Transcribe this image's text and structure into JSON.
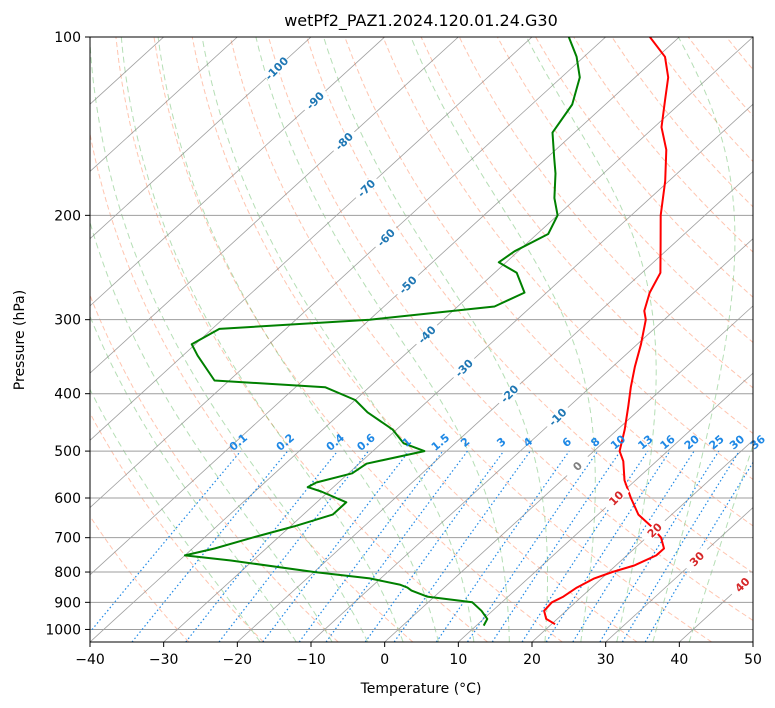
{
  "chart_data": {
    "type": "line",
    "subtype": "skew-t log-p diagram",
    "title": "wetPf2_PAZ1.2024.120.01.24.G30",
    "xlabel": "Temperature (°C)",
    "ylabel": "Pressure (hPa)",
    "xlim": [
      -40,
      50
    ],
    "ylim": [
      1050,
      100
    ],
    "y_scale": "log",
    "x_ticks": [
      "−40",
      "−30",
      "−20",
      "−10",
      "0",
      "10",
      "20",
      "30",
      "40",
      "50"
    ],
    "y_ticks": [
      "100",
      "200",
      "300",
      "400",
      "500",
      "600",
      "700",
      "800",
      "900",
      "1000"
    ],
    "grid": true,
    "series": [
      {
        "name": "",
        "color": "#ff0000",
        "points": [
          [
            20.5,
            980
          ],
          [
            18.5,
            960
          ],
          [
            17.0,
            930
          ],
          [
            16.8,
            900
          ],
          [
            17.5,
            880
          ],
          [
            18.0,
            850
          ],
          [
            19.0,
            820
          ],
          [
            20.5,
            800
          ],
          [
            22.5,
            780
          ],
          [
            24.0,
            750
          ],
          [
            24.0,
            730
          ],
          [
            22.0,
            700
          ],
          [
            19.0,
            670
          ],
          [
            15.5,
            640
          ],
          [
            12.0,
            600
          ],
          [
            8.5,
            560
          ],
          [
            5.5,
            520
          ],
          [
            3.5,
            500
          ],
          [
            1.0,
            460
          ],
          [
            -2.0,
            420
          ],
          [
            -4.5,
            390
          ],
          [
            -7.0,
            360
          ],
          [
            -9.5,
            330
          ],
          [
            -12.5,
            300
          ],
          [
            -14.0,
            290
          ],
          [
            -16.0,
            270
          ],
          [
            -17.5,
            250
          ],
          [
            -21.5,
            225
          ],
          [
            -26.0,
            200
          ],
          [
            -30.5,
            175
          ],
          [
            -35.0,
            155
          ],
          [
            -39.0,
            142
          ],
          [
            -42.5,
            128
          ],
          [
            -45.5,
            117
          ],
          [
            -49.0,
            108
          ],
          [
            -54.0,
            100
          ]
        ]
      },
      {
        "name": "",
        "color": "#008000",
        "points": [
          [
            11.0,
            985
          ],
          [
            10.5,
            960
          ],
          [
            8.5,
            930
          ],
          [
            6.0,
            900
          ],
          [
            -1.0,
            880
          ],
          [
            -4.0,
            860
          ],
          [
            -5.0,
            850
          ],
          [
            -6.5,
            840
          ],
          [
            -11.5,
            820
          ],
          [
            -20.0,
            800
          ],
          [
            -33.0,
            765
          ],
          [
            -40.0,
            750
          ],
          [
            -37.0,
            730
          ],
          [
            -33.5,
            700
          ],
          [
            -29.5,
            670
          ],
          [
            -26.0,
            640
          ],
          [
            -26.0,
            610
          ],
          [
            -31.0,
            585
          ],
          [
            -33.5,
            575
          ],
          [
            -33.0,
            565
          ],
          [
            -29.5,
            545
          ],
          [
            -29.0,
            525
          ],
          [
            -23.0,
            500
          ],
          [
            -27.0,
            485
          ],
          [
            -30.5,
            460
          ],
          [
            -36.5,
            430
          ],
          [
            -40.0,
            410
          ],
          [
            -46.0,
            390
          ],
          [
            -62.0,
            380
          ],
          [
            -68.0,
            345
          ],
          [
            -70.5,
            330
          ],
          [
            -69.0,
            311
          ],
          [
            -50.0,
            300
          ],
          [
            -35.0,
            285
          ],
          [
            -33.0,
            270
          ],
          [
            -37.0,
            250
          ],
          [
            -41.0,
            240
          ],
          [
            -40.5,
            230
          ],
          [
            -38.5,
            215
          ],
          [
            -40.0,
            200
          ],
          [
            -43.0,
            187
          ],
          [
            -46.5,
            170
          ],
          [
            -49.0,
            160
          ],
          [
            -53.0,
            145
          ],
          [
            -54.5,
            130
          ],
          [
            -57.5,
            117
          ],
          [
            -61.0,
            108
          ],
          [
            -65.0,
            100
          ]
        ]
      }
    ],
    "annotations": {
      "isotherm_labels": [
        "-100",
        "-90",
        "-80",
        "-70",
        "-60",
        "-50",
        "-40",
        "-30",
        "-20",
        "-10",
        "0",
        "10",
        "20",
        "30",
        "40"
      ],
      "mixing_ratio_labels": [
        "0.1",
        "0.2",
        "0.4",
        "0.6",
        "1",
        "1.5",
        "2",
        "3",
        "4",
        "6",
        "8",
        "10",
        "13",
        "16",
        "20",
        "25",
        "30",
        "36"
      ],
      "colors": {
        "cold_isotherm": "#1f77b4",
        "warm_isotherm": "#d62728",
        "zero_isotherm": "#808080",
        "mixing_ratio": "#1e88e5",
        "dry_adiabat": "#ff7f50",
        "moist_adiabat": "#2ca02c"
      }
    }
  }
}
